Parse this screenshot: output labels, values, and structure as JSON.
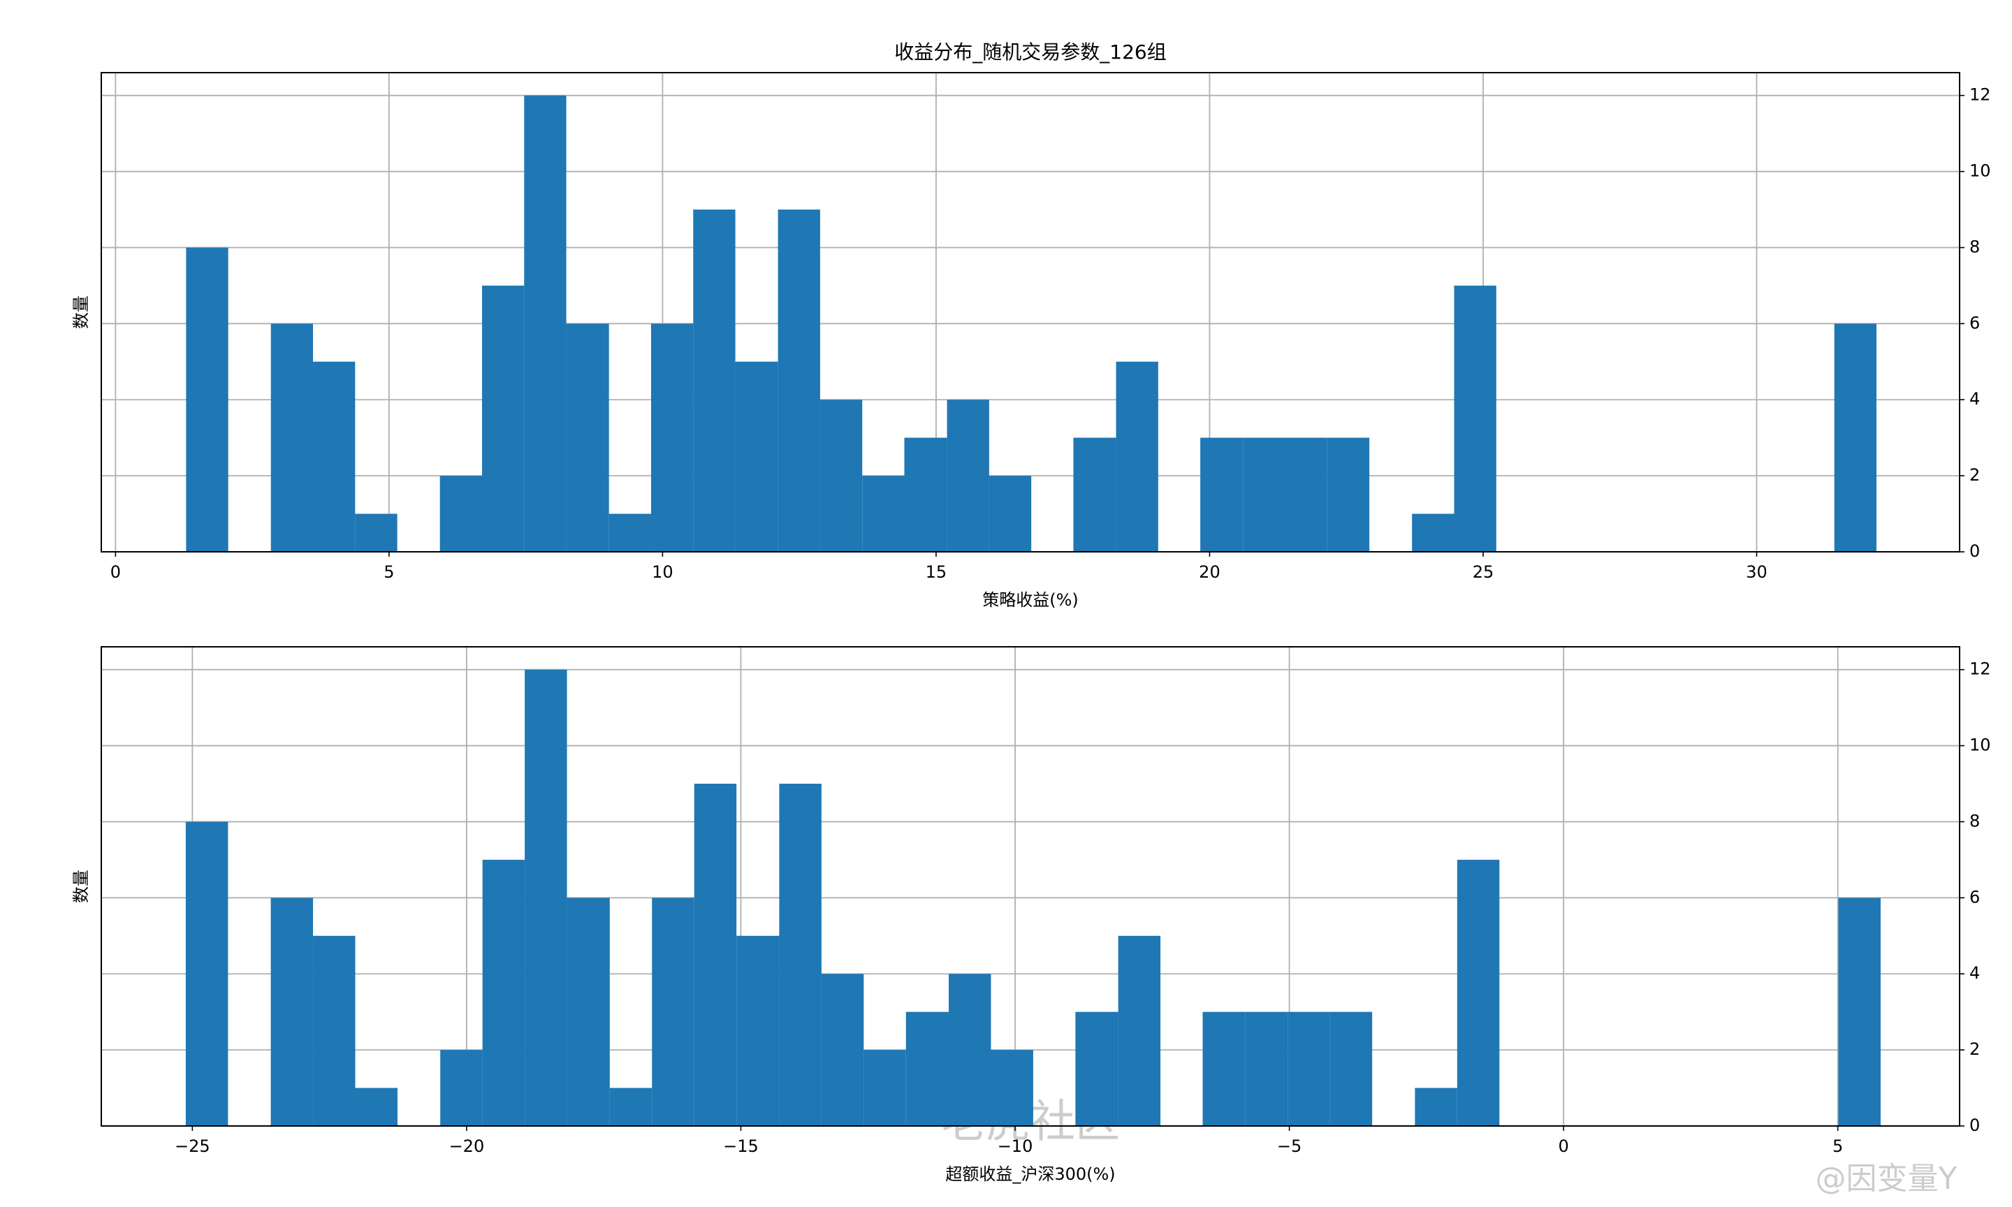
{
  "chart_data": [
    {
      "type": "histogram",
      "title": "收益分布_随机交易参数_126组",
      "xlabel": "策略收益(%)",
      "ylabel": "数量",
      "color": "#1f77b4",
      "grid": true,
      "y_axis_side": "right",
      "bins": [
        1.29,
        2.06,
        2.84,
        3.61,
        4.38,
        5.15,
        5.93,
        6.7,
        7.47,
        8.24,
        9.02,
        9.79,
        10.56,
        11.33,
        12.11,
        12.88,
        13.65,
        14.42,
        15.2,
        15.97,
        16.74,
        17.51,
        18.29,
        19.06,
        19.83,
        20.61,
        21.38,
        22.15,
        22.92,
        23.7,
        24.47,
        25.24,
        26.01,
        26.79,
        27.56,
        28.33,
        29.1,
        29.88,
        30.65,
        31.42,
        32.19
      ],
      "values": [
        8,
        0,
        6,
        5,
        1,
        0,
        2,
        7,
        12,
        6,
        1,
        6,
        9,
        5,
        9,
        4,
        2,
        3,
        4,
        2,
        0,
        3,
        5,
        0,
        3,
        3,
        3,
        3,
        0,
        1,
        7,
        0,
        0,
        0,
        0,
        0,
        0,
        0,
        0,
        6
      ],
      "xlim": [
        -0.26,
        33.71
      ],
      "xticks": [
        0,
        5,
        10,
        15,
        20,
        25,
        30
      ],
      "ylim": [
        0,
        12.6
      ],
      "yticks": [
        0,
        2,
        4,
        6,
        8,
        10,
        12
      ]
    },
    {
      "type": "histogram",
      "xlabel": "超额收益_沪深300(%)",
      "ylabel": "数量",
      "color": "#1f77b4",
      "grid": true,
      "y_axis_side": "right",
      "bins": [
        -25.12,
        -24.35,
        -23.57,
        -22.8,
        -22.03,
        -21.26,
        -20.48,
        -19.71,
        -18.94,
        -18.17,
        -17.39,
        -16.62,
        -15.85,
        -15.08,
        -14.3,
        -13.53,
        -12.76,
        -11.99,
        -11.21,
        -10.44,
        -9.67,
        -8.9,
        -8.12,
        -7.35,
        -6.58,
        -5.8,
        -5.03,
        -4.26,
        -3.49,
        -2.71,
        -1.94,
        -1.17,
        -0.4,
        0.38,
        1.15,
        1.92,
        2.69,
        3.47,
        4.24,
        5.01,
        5.78
      ],
      "values": [
        8,
        0,
        6,
        5,
        1,
        0,
        2,
        7,
        12,
        6,
        1,
        6,
        9,
        5,
        9,
        4,
        2,
        3,
        4,
        2,
        0,
        3,
        5,
        0,
        3,
        3,
        3,
        3,
        0,
        1,
        7,
        0,
        0,
        0,
        0,
        0,
        0,
        0,
        0,
        6
      ],
      "xlim": [
        -26.66,
        7.22
      ],
      "xticks": [
        {
          "value": -25,
          "label": "−25"
        },
        {
          "value": -20,
          "label": "−20"
        },
        {
          "value": -15,
          "label": "−15"
        },
        {
          "value": -10,
          "label": "−10"
        },
        {
          "value": -5,
          "label": "−5"
        },
        0,
        5
      ],
      "ylim": [
        0,
        12.6
      ],
      "yticks": [
        0,
        2,
        4,
        6,
        8,
        10,
        12
      ]
    }
  ],
  "watermark": {
    "brand": "老虎社区",
    "author": "@因变量Y"
  }
}
